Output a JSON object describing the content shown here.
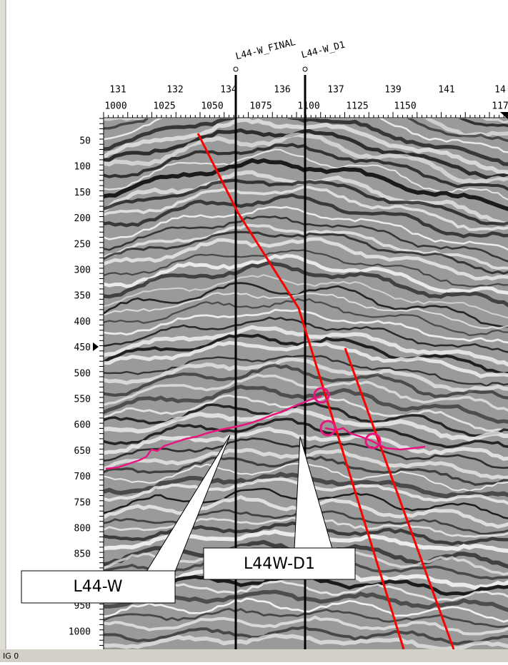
{
  "wells": [
    {
      "name": "L44-W_FINAL"
    },
    {
      "name": "L44-W_D1"
    }
  ],
  "top_axis": {
    "row1": [
      "131",
      "132",
      "134",
      "136",
      "137",
      "139",
      "141",
      "14"
    ],
    "row2": [
      "1000",
      "1025",
      "1050",
      "1075",
      "1100",
      "1125",
      "1150",
      "117"
    ]
  },
  "left_axis": [
    "50",
    "100",
    "150",
    "200",
    "250",
    "300",
    "350",
    "400",
    "450",
    "500",
    "550",
    "600",
    "650",
    "700",
    "750",
    "800",
    "850",
    "950",
    "1000"
  ],
  "callouts": [
    {
      "label": "L44-W"
    },
    {
      "label": "L44W-D1"
    }
  ],
  "status_bar": {
    "text": "IG 0"
  }
}
